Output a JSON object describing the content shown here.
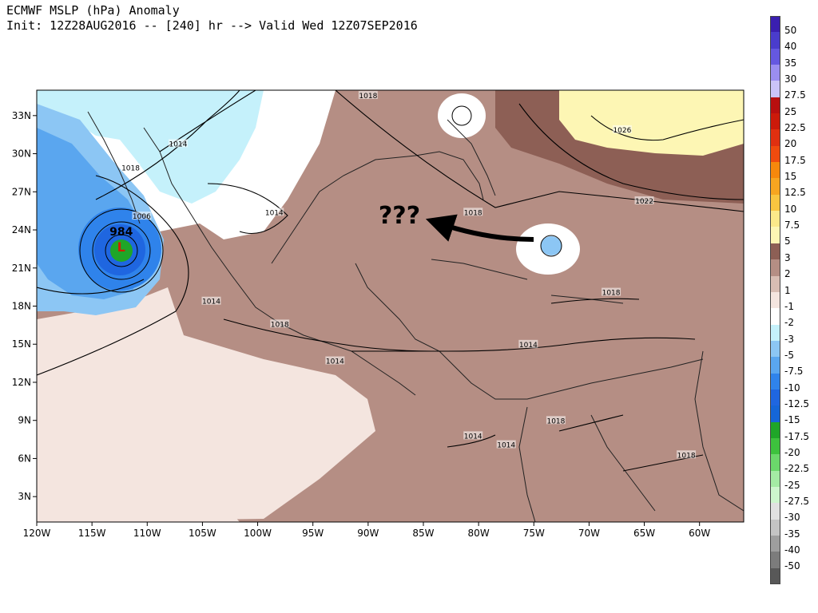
{
  "header": {
    "line1": "ECMWF MSLP (hPa) Anomaly",
    "line2": "Init: 12Z28AUG2016 -- [240] hr --> Valid Wed 12Z07SEP2016"
  },
  "map": {
    "lon_labels": [
      "120W",
      "115W",
      "110W",
      "105W",
      "100W",
      "95W",
      "90W",
      "85W",
      "80W",
      "75W",
      "70W",
      "65W",
      "60W"
    ],
    "lat_labels": [
      "33N",
      "30N",
      "27N",
      "24N",
      "21N",
      "18N",
      "15N",
      "12N",
      "9N",
      "6N",
      "3N"
    ],
    "lon_range": [
      -120,
      -56
    ],
    "lat_range": [
      1,
      35
    ],
    "low_center": {
      "label": "L",
      "pressure": "984",
      "lon": -112.5,
      "lat": 22.8
    },
    "isobar_labels": [
      {
        "text": "1018",
        "lon": -90.0,
        "lat": 34.5
      },
      {
        "text": "1026",
        "lon": -67.0,
        "lat": 31.8
      },
      {
        "text": "1014",
        "lon": -107.2,
        "lat": 30.7
      },
      {
        "text": "1018",
        "lon": -111.5,
        "lat": 28.8
      },
      {
        "text": "1006",
        "lon": -110.5,
        "lat": 25.0
      },
      {
        "text": "1014",
        "lon": -98.5,
        "lat": 25.3
      },
      {
        "text": "1018",
        "lon": -80.5,
        "lat": 25.3
      },
      {
        "text": "1022",
        "lon": -65.0,
        "lat": 26.2
      },
      {
        "text": "1014",
        "lon": -104.2,
        "lat": 18.3
      },
      {
        "text": "1018",
        "lon": -98.0,
        "lat": 16.5
      },
      {
        "text": "1018",
        "lon": -68.0,
        "lat": 19.0
      },
      {
        "text": "1014",
        "lon": -75.5,
        "lat": 14.9
      },
      {
        "text": "1014",
        "lon": -93.0,
        "lat": 13.6
      },
      {
        "text": "1018",
        "lon": -73.0,
        "lat": 8.9
      },
      {
        "text": "1014",
        "lon": -80.5,
        "lat": 7.7
      },
      {
        "text": "1014",
        "lon": -77.5,
        "lat": 7.0
      },
      {
        "text": "1018",
        "lon": -61.2,
        "lat": 6.2
      }
    ],
    "annotation": {
      "text": "???",
      "arrow": "curved-left-arrow"
    }
  },
  "legend": {
    "labels": [
      "50",
      "40",
      "35",
      "30",
      "27.5",
      "25",
      "22.5",
      "20",
      "17.5",
      "15",
      "12.5",
      "10",
      "7.5",
      "5",
      "3",
      "2",
      "1",
      "-1",
      "-2",
      "-3",
      "-5",
      "-7.5",
      "-10",
      "-12.5",
      "-15",
      "-17.5",
      "-20",
      "-22.5",
      "-25",
      "-27.5",
      "-30",
      "-35",
      "-40",
      "-50"
    ],
    "colors": [
      "#3a1fb0",
      "#4a3ccc",
      "#6558e0",
      "#9b8ef0",
      "#cbc4f8",
      "#b80f0f",
      "#cc1a0a",
      "#e03010",
      "#f04b0e",
      "#f6880c",
      "#f7a520",
      "#f9c540",
      "#fbe98a",
      "#fdf6b4",
      "#8d5f55",
      "#b58e84",
      "#d8bdb3",
      "#f4e5df",
      "#ffffff",
      "#c5f1fb",
      "#8cc6f4",
      "#5aa6ef",
      "#2f83eb",
      "#1f66e0",
      "#1566d8",
      "#1fa628",
      "#3dc23d",
      "#6bd86b",
      "#a4eba4",
      "#cdf6cd",
      "#e1e1e1",
      "#c4c4c4",
      "#9e9e9e",
      "#7c7c7c",
      "#585858"
    ]
  },
  "colors": {
    "ocean_neutral": "#f4e5df",
    "positive_2": "#d8bdb3",
    "positive_3": "#b58e84",
    "positive_5": "#8d5f55",
    "positive_7_5": "#fdf6b4",
    "negative_2": "#c5f1fb",
    "negative_3": "#8cc6f4",
    "negative_5": "#5aa6ef",
    "negative_7_5": "#2f83eb",
    "negative_15": "#1fa628"
  }
}
